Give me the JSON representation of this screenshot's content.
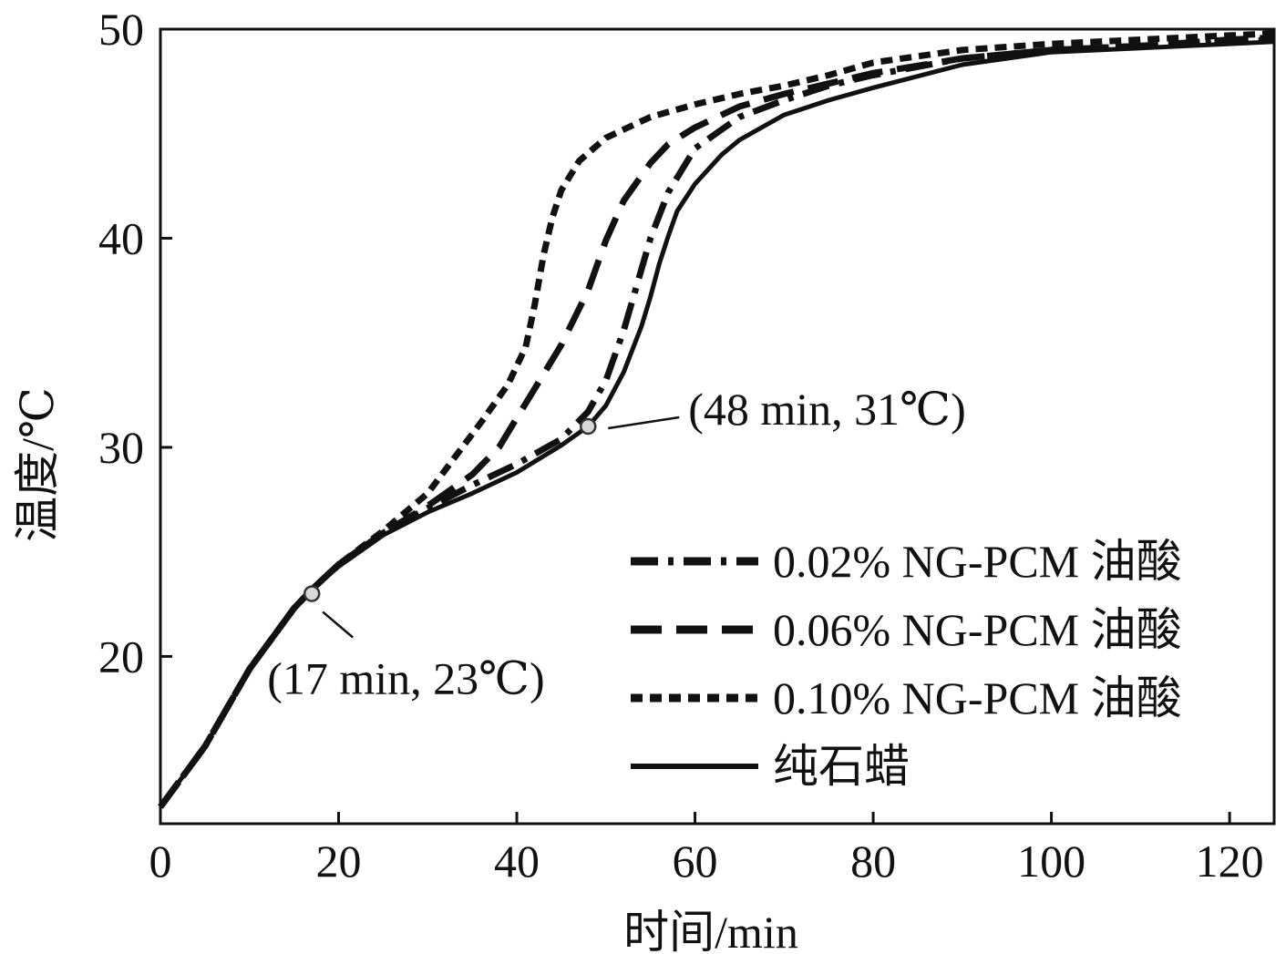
{
  "chart_data": {
    "type": "line",
    "title": "",
    "xlabel": "时间/min",
    "ylabel": "温度/℃",
    "xlim": [
      0,
      125
    ],
    "ylim": [
      12,
      50
    ],
    "xticks": [
      0,
      20,
      40,
      60,
      80,
      100,
      120
    ],
    "yticks": [
      20,
      30,
      40,
      50
    ],
    "xtick_labels": [
      "0",
      "20",
      "40",
      "60",
      "80",
      "100",
      "120"
    ],
    "ytick_labels": [
      "20",
      "30",
      "40",
      "50"
    ],
    "grid": false,
    "legend_position": "right",
    "series": [
      {
        "name": "0.02% NG-PCM 油酸",
        "style": "dashdot",
        "color": "#111111",
        "x": [
          0,
          5,
          10,
          15,
          17,
          20,
          25,
          30,
          35,
          40,
          45,
          48,
          50,
          52,
          55,
          57,
          60,
          65,
          70,
          75,
          80,
          90,
          100,
          110,
          120,
          125
        ],
        "y": [
          12.8,
          15.7,
          19.4,
          22.3,
          23.2,
          24.4,
          25.9,
          27.1,
          28.2,
          29.2,
          30.4,
          31.7,
          33.2,
          35.6,
          40.0,
          42.2,
          44.3,
          45.8,
          46.6,
          47.3,
          47.8,
          48.6,
          49.0,
          49.2,
          49.4,
          49.5
        ]
      },
      {
        "name": "0.06% NG-PCM 油酸",
        "style": "dashed",
        "color": "#111111",
        "x": [
          0,
          5,
          10,
          15,
          17,
          20,
          25,
          30,
          35,
          38,
          40,
          42,
          45,
          48,
          50,
          52,
          55,
          57,
          60,
          65,
          70,
          75,
          80,
          90,
          100,
          110,
          120,
          125
        ],
        "y": [
          12.8,
          15.7,
          19.4,
          22.3,
          23.2,
          24.4,
          25.9,
          27.2,
          28.7,
          30.0,
          31.4,
          32.8,
          34.9,
          37.5,
          39.9,
          41.8,
          43.6,
          44.5,
          45.3,
          46.3,
          46.9,
          47.4,
          47.9,
          48.6,
          49.0,
          49.2,
          49.5,
          49.6
        ]
      },
      {
        "name": "0.10% NG-PCM 油酸",
        "style": "dotted",
        "color": "#111111",
        "x": [
          0,
          5,
          10,
          15,
          17,
          20,
          25,
          30,
          33,
          36,
          39,
          41,
          42,
          43,
          44,
          45,
          47,
          50,
          55,
          60,
          65,
          70,
          75,
          80,
          90,
          100,
          110,
          120,
          125
        ],
        "y": [
          12.8,
          15.7,
          19.4,
          22.3,
          23.2,
          24.4,
          26.0,
          27.8,
          29.5,
          31.2,
          33.0,
          34.8,
          36.8,
          39.2,
          41.0,
          42.3,
          43.7,
          44.8,
          45.8,
          46.4,
          46.9,
          47.3,
          47.8,
          48.4,
          49.0,
          49.3,
          49.5,
          49.7,
          49.8
        ]
      },
      {
        "name": "纯石蜡",
        "style": "solid",
        "color": "#111111",
        "x": [
          0,
          5,
          10,
          15,
          17,
          20,
          25,
          30,
          35,
          40,
          45,
          48,
          50,
          52,
          54,
          55,
          56,
          57,
          58,
          60,
          63,
          65,
          70,
          75,
          80,
          90,
          100,
          110,
          120,
          125
        ],
        "y": [
          12.8,
          15.7,
          19.4,
          22.3,
          23.2,
          24.3,
          25.8,
          26.9,
          27.8,
          28.8,
          30.1,
          31.0,
          32.0,
          33.6,
          35.8,
          37.2,
          38.8,
          40.1,
          41.3,
          42.6,
          44.0,
          44.7,
          45.9,
          46.6,
          47.2,
          48.3,
          48.9,
          49.1,
          49.3,
          49.4
        ]
      }
    ],
    "annotations": [
      {
        "label": "(17 min, 23℃)",
        "x": 17,
        "y": 23
      },
      {
        "label": "(48 min, 31℃)",
        "x": 48,
        "y": 31
      }
    ]
  }
}
